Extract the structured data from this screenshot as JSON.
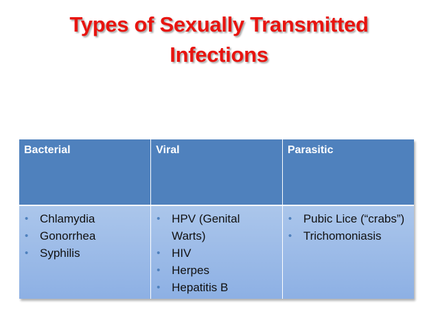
{
  "title": "Types of Sexually Transmitted Infections",
  "table": {
    "columns": [
      {
        "header": "Bacterial",
        "items": [
          "Chlamydia",
          "Gonorrhea",
          "Syphilis"
        ]
      },
      {
        "header": "Viral",
        "items": [
          "HPV (Genital Warts)",
          "HIV",
          "Herpes",
          "Hepatitis B"
        ]
      },
      {
        "header": "Parasitic",
        "items": [
          "Pubic Lice (“crabs”)",
          "Trichomoniasis"
        ]
      }
    ]
  }
}
